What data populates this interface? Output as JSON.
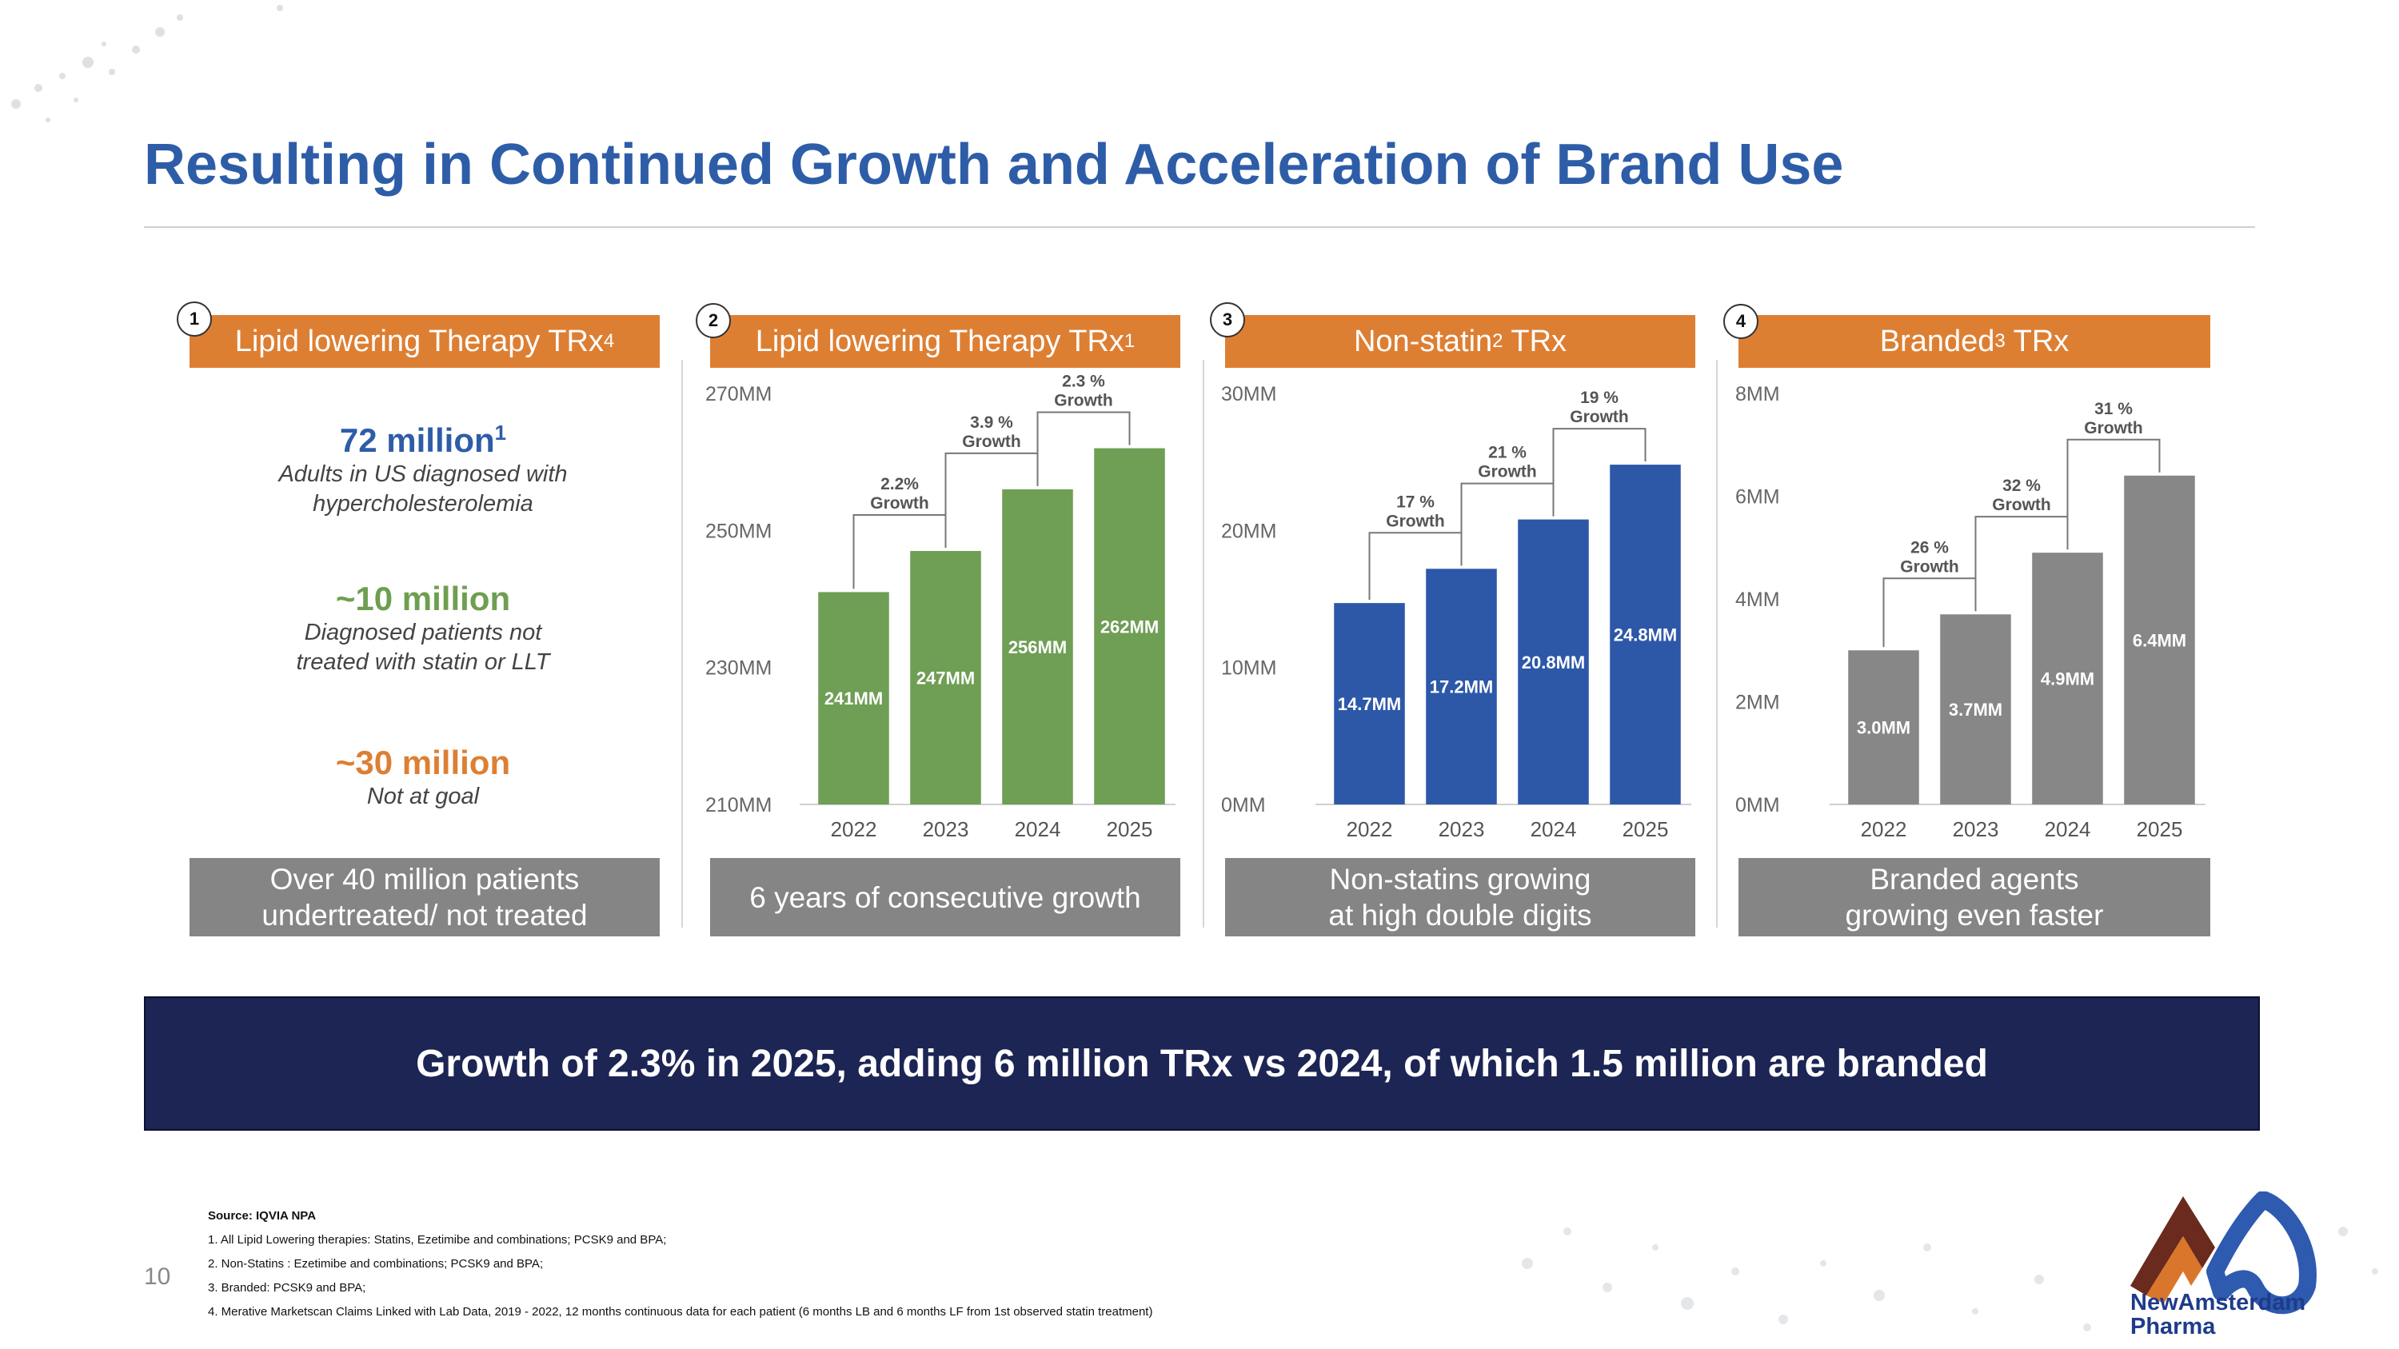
{
  "title": "Resulting in Continued Growth and Acceleration of Brand Use",
  "panels": [
    {
      "num": "1",
      "header": "Lipid lowering Therapy TRx",
      "sup": "4",
      "footer_lines": [
        "Over 40 million patients",
        "undertreated/ not treated"
      ]
    },
    {
      "num": "2",
      "header": "Lipid lowering Therapy TRx",
      "sup": "1",
      "footer_lines": [
        "6 years of consecutive growth"
      ]
    },
    {
      "num": "3",
      "header": "Non-statin",
      "sup": "2",
      "header_suffix": " TRx",
      "footer_lines": [
        "Non-statins growing",
        "at high double digits"
      ]
    },
    {
      "num": "4",
      "header": "Branded",
      "sup": "3",
      "header_suffix": " TRx",
      "footer_lines": [
        "Branded agents",
        "growing even faster"
      ]
    }
  ],
  "stats": [
    {
      "value": "72 million",
      "sup": "1",
      "desc_lines": [
        "Adults in US diagnosed with",
        "hypercholesterolemia"
      ],
      "color": "#2e5da8"
    },
    {
      "value": "~10 million",
      "sup": "",
      "desc_lines": [
        "Diagnosed patients not",
        "treated with statin or LLT"
      ],
      "color": "#6e9f4f"
    },
    {
      "value": "~30 million",
      "sup": "",
      "desc_lines": [
        "Not at goal"
      ],
      "color": "#dd7f33"
    }
  ],
  "chart_data": [
    {
      "type": "bar",
      "title": "Lipid lowering Therapy TRx1",
      "categories": [
        "2022",
        "2023",
        "2024",
        "2025"
      ],
      "values": [
        241,
        247,
        256,
        262
      ],
      "value_labels": [
        "241MM",
        "247MM",
        "256MM",
        "262MM"
      ],
      "ylim": [
        210,
        270
      ],
      "yticks": [
        210,
        230,
        250,
        270
      ],
      "ytick_labels": [
        "210MM",
        "230MM",
        "250MM",
        "270MM"
      ],
      "growth": [
        {
          "pct": "2.2%",
          "label": "Growth"
        },
        {
          "pct": "3.9 %",
          "label": "Growth"
        },
        {
          "pct": "2.3 %",
          "label": "Growth"
        }
      ],
      "color": "#6f9e55"
    },
    {
      "type": "bar",
      "title": "Non-statin2 TRx",
      "categories": [
        "2022",
        "2023",
        "2024",
        "2025"
      ],
      "values": [
        14.7,
        17.2,
        20.8,
        24.8
      ],
      "value_labels": [
        "14.7MM",
        "17.2MM",
        "20.8MM",
        "24.8MM"
      ],
      "ylim": [
        0,
        30
      ],
      "yticks": [
        0,
        10,
        20,
        30
      ],
      "ytick_labels": [
        "0MM",
        "10MM",
        "20MM",
        "30MM"
      ],
      "growth": [
        {
          "pct": "17 %",
          "label": "Growth"
        },
        {
          "pct": "21 %",
          "label": "Growth"
        },
        {
          "pct": "19 %",
          "label": "Growth"
        }
      ],
      "color": "#2d58a8"
    },
    {
      "type": "bar",
      "title": "Branded3 TRx",
      "categories": [
        "2022",
        "2023",
        "2024",
        "2025"
      ],
      "values": [
        3.0,
        3.7,
        4.9,
        6.4
      ],
      "value_labels": [
        "3.0MM",
        "3.7MM",
        "4.9MM",
        "6.4MM"
      ],
      "ylim": [
        0,
        8
      ],
      "yticks": [
        0,
        2,
        4,
        6,
        8
      ],
      "ytick_labels": [
        "0MM",
        "2MM",
        "4MM",
        "6MM",
        "8MM"
      ],
      "growth": [
        {
          "pct": "26 %",
          "label": "Growth"
        },
        {
          "pct": "32 %",
          "label": "Growth"
        },
        {
          "pct": "31 %",
          "label": "Growth"
        }
      ],
      "color": "#878787"
    }
  ],
  "banner": "Growth of 2.3% in 2025, adding 6 million TRx vs 2024, of which 1.5 million are branded",
  "notes": {
    "source": "Source: IQVIA NPA",
    "items": [
      "1. All Lipid Lowering therapies: Statins, Ezetimibe and combinations; PCSK9 and BPA;",
      "2. Non-Statins : Ezetimibe and combinations; PCSK9 and BPA;",
      "3. Branded: PCSK9 and BPA;",
      "4. Merative Marketscan Claims Linked with Lab Data, 2019 - 2022, 12 months continuous data for each patient (6 months LB and 6 months LF from 1st observed statin treatment)"
    ]
  },
  "page_number": "10",
  "logo": {
    "line1": "NewAmsterdam",
    "line2": "Pharma",
    "dark": "#6b2a1e",
    "orange": "#d9762b",
    "blue": "#2e5bb0"
  }
}
